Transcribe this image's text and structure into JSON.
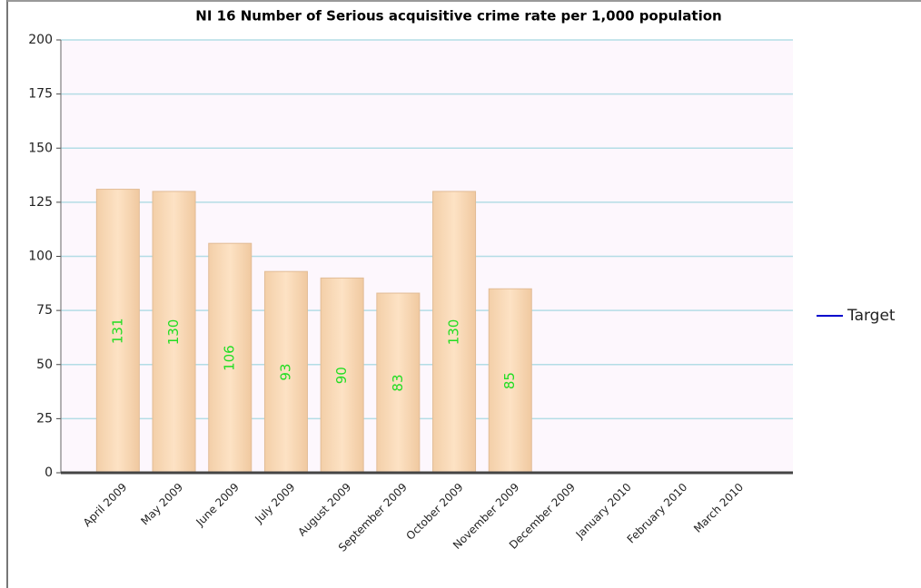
{
  "chart_data": {
    "type": "bar",
    "title": "NI 16 Number of Serious acquisitive crime rate per 1,000 population",
    "categories": [
      "April 2009",
      "May 2009",
      "June 2009",
      "July 2009",
      "August 2009",
      "September 2009",
      "October 2009",
      "November 2009",
      "December 2009",
      "January 2010",
      "February 2010",
      "March 2010"
    ],
    "values": [
      131,
      130,
      106,
      93,
      90,
      83,
      130,
      85,
      null,
      null,
      null,
      null
    ],
    "color": "#f9d9b5",
    "lines": [
      {
        "name": "Target",
        "color": "#0000cc",
        "values": [
          null,
          null,
          null,
          null,
          null,
          null,
          null,
          null,
          null,
          null,
          null,
          null
        ]
      }
    ],
    "ylim": [
      0,
      200
    ],
    "yticks": [
      0,
      25,
      50,
      75,
      100,
      125,
      150,
      175,
      200
    ],
    "grid": true
  }
}
